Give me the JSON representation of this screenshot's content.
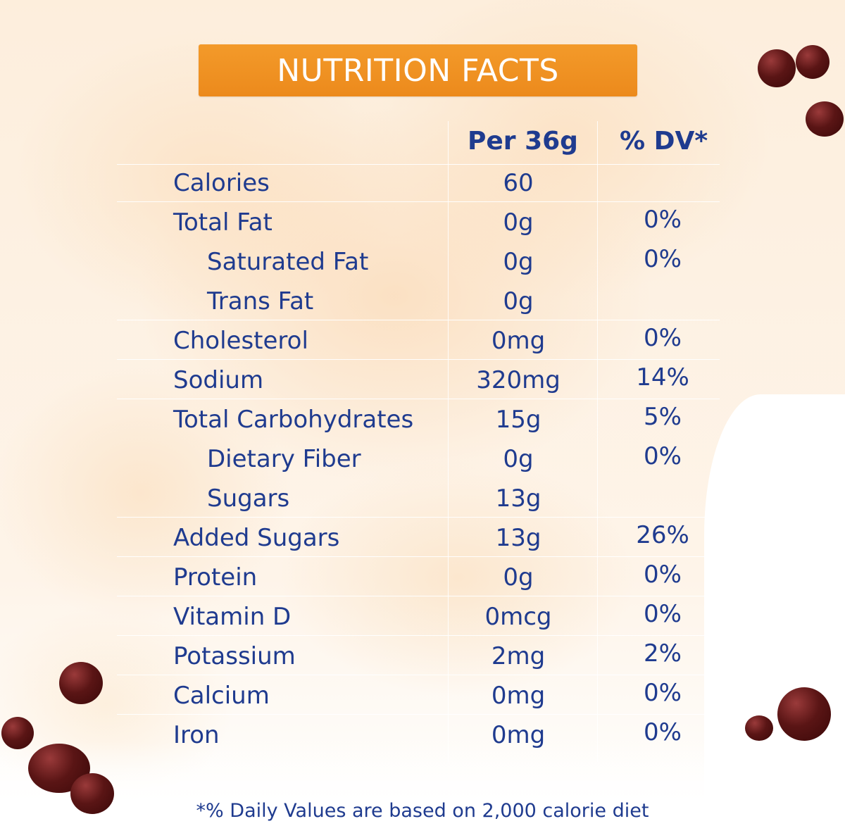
{
  "title": "NUTRITION FACTS",
  "header": {
    "amount": "Per 36g",
    "dv": "% DV*"
  },
  "rows": [
    {
      "name": "Calories",
      "amount": "60",
      "dv": ""
    },
    {
      "name": "Total Fat",
      "amount": "0g",
      "dv": "0%"
    },
    {
      "name": "Saturated Fat",
      "amount": "0g",
      "dv": "0%"
    },
    {
      "name": "Trans Fat",
      "amount": "0g",
      "dv": ""
    },
    {
      "name": "Cholesterol",
      "amount": "0mg",
      "dv": "0%"
    },
    {
      "name": "Sodium",
      "amount": "320mg",
      "dv": "14%"
    },
    {
      "name": "Total Carbohydrates",
      "amount": "15g",
      "dv": "5%"
    },
    {
      "name": "Dietary Fiber",
      "amount": "0g",
      "dv": "0%"
    },
    {
      "name": "Sugars",
      "amount": "13g",
      "dv": ""
    },
    {
      "name": "Added Sugars",
      "amount": "13g",
      "dv": "26%"
    },
    {
      "name": "Protein",
      "amount": "0g",
      "dv": "0%"
    },
    {
      "name": "Vitamin D",
      "amount": "0mcg",
      "dv": "0%"
    },
    {
      "name": "Potassium",
      "amount": "2mg",
      "dv": "2%"
    },
    {
      "name": "Calcium",
      "amount": "0mg",
      "dv": "0%"
    },
    {
      "name": "Iron",
      "amount": "0mg",
      "dv": "0%"
    }
  ],
  "footnote": "*% Daily Values are based on 2,000 calorie diet",
  "colors": {
    "title_bar": "#ef901f",
    "text": "#1f3b8f",
    "pearl": "#5a1515"
  }
}
